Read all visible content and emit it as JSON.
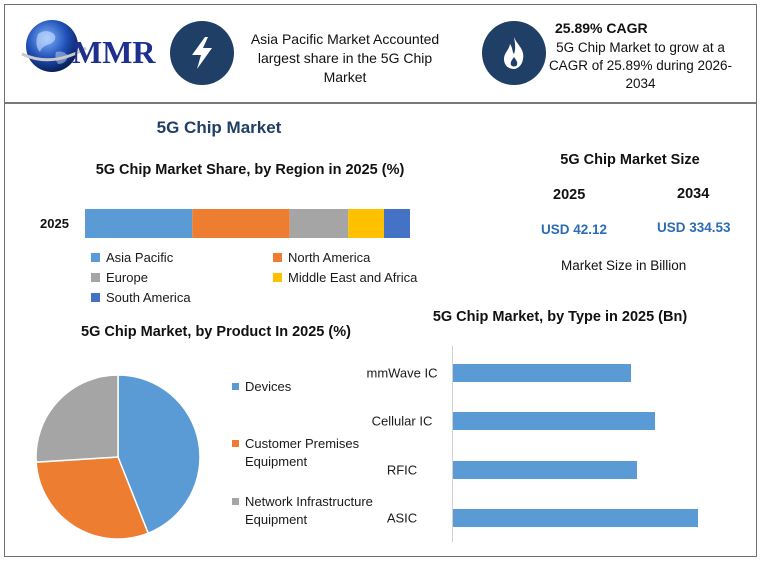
{
  "logo": {
    "text": "MMR"
  },
  "header": {
    "card1": {
      "text": "Asia Pacific Market Accounted largest share in the 5G Chip Market"
    },
    "card2": {
      "title": "25.89% CAGR",
      "text": "5G Chip Market to grow at a CAGR of 25.89% during 2026-2034"
    }
  },
  "page_title": "5G Chip Market",
  "market_size": {
    "title": "5G Chip Market Size",
    "year1": "2025",
    "year2": "2034",
    "value1": "USD 42.12",
    "value2": "USD 334.53",
    "unit_note": "Market Size in Billion"
  },
  "colors": {
    "blue": "#5b9bd5",
    "orange": "#ed7d31",
    "gray": "#a5a5a5",
    "yellow": "#ffc000",
    "darkblue": "#4472c4",
    "icon_bg": "#1f3f66"
  },
  "chart_data": [
    {
      "type": "bar",
      "orientation": "stacked-horizontal",
      "title": "5G Chip Market Share, by Region in 2025 (%)",
      "categories": [
        "2025"
      ],
      "series": [
        {
          "name": "Asia Pacific",
          "values": [
            33
          ],
          "color": "#5b9bd5"
        },
        {
          "name": "North America",
          "values": [
            30
          ],
          "color": "#ed7d31"
        },
        {
          "name": "Europe",
          "values": [
            18
          ],
          "color": "#a5a5a5"
        },
        {
          "name": "Middle East and Africa",
          "values": [
            11
          ],
          "color": "#ffc000"
        },
        {
          "name": "South America",
          "values": [
            8
          ],
          "color": "#4472c4"
        }
      ]
    },
    {
      "type": "pie",
      "title": "5G Chip Market, by Product In 2025 (%)",
      "labels": [
        "Devices",
        "Customer Premises Equipment",
        "Network Infrastructure Equipment"
      ],
      "values": [
        44,
        30,
        26
      ],
      "colors": [
        "#5b9bd5",
        "#ed7d31",
        "#a5a5a5"
      ]
    },
    {
      "type": "bar",
      "orientation": "horizontal",
      "title": "5G Chip Market, by Type in 2025 (Bn)",
      "categories": [
        "mmWave IC",
        "Cellular IC",
        "RFIC",
        "ASIC"
      ],
      "values": [
        9,
        10.2,
        9.3,
        12.4
      ],
      "xlim": [
        0,
        14
      ],
      "color": "#5b9bd5"
    }
  ]
}
